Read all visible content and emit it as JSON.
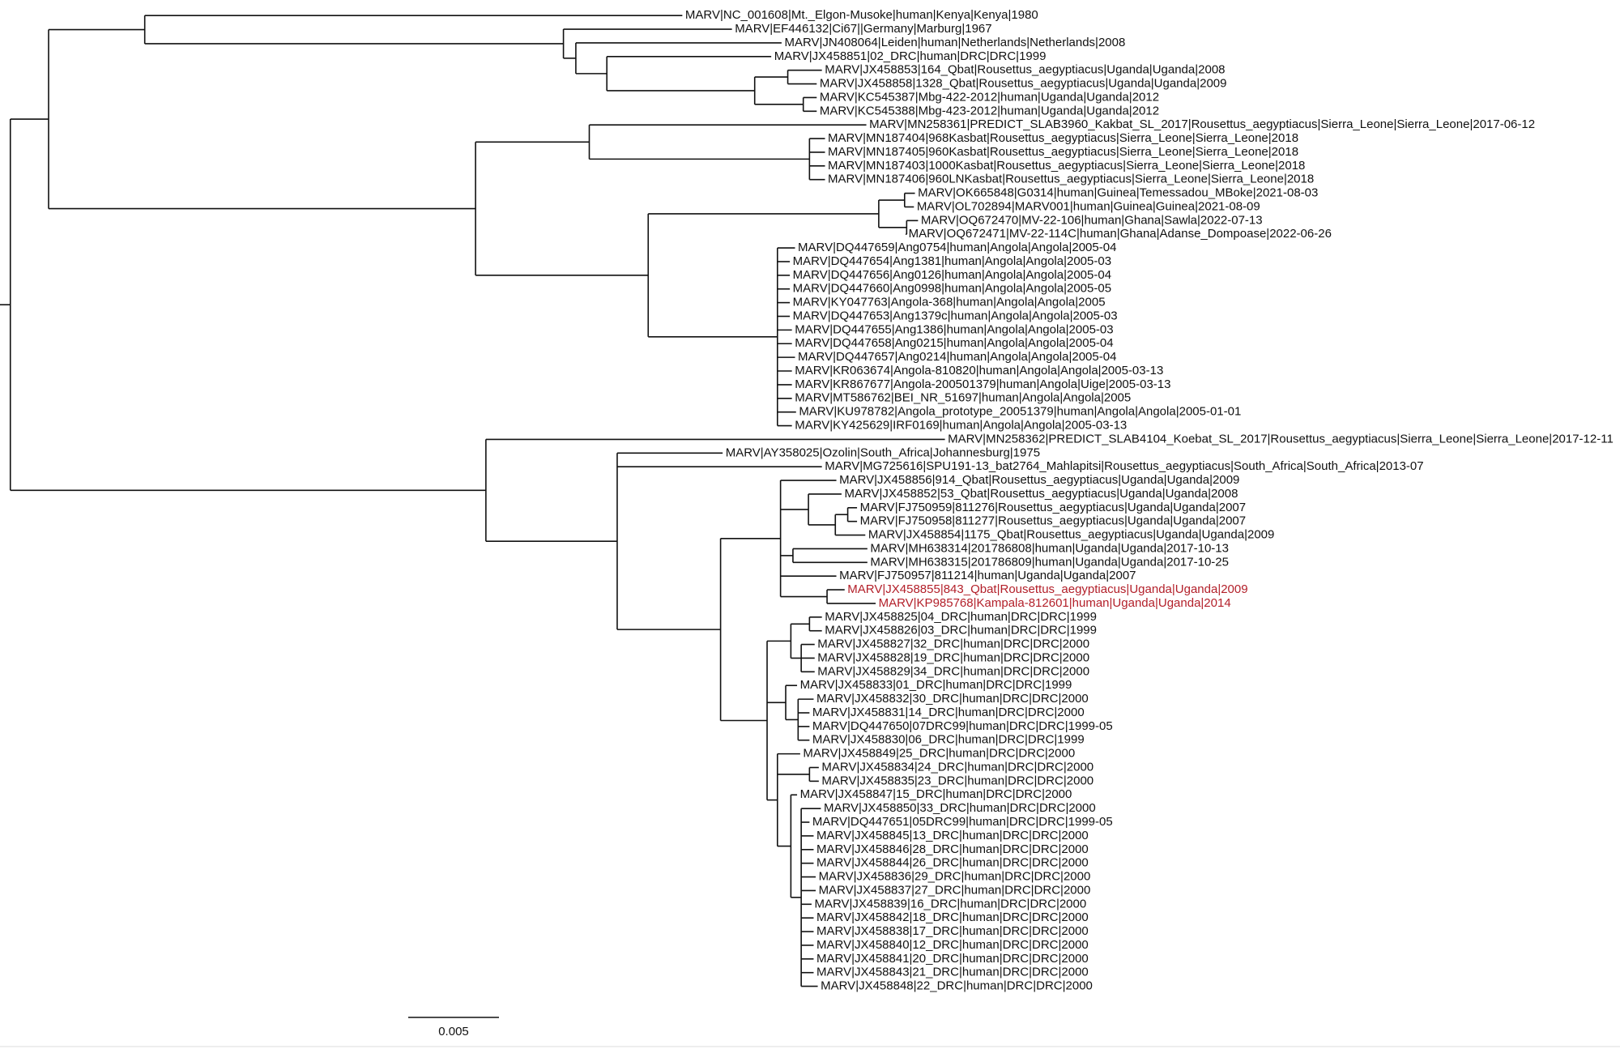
{
  "leaves": [
    "MARV|NC_001608|Mt._Elgon-Musoke|human|Kenya|Kenya|1980",
    "MARV|EF446132|Ci67||Germany|Marburg|1967",
    "MARV|JN408064|Leiden|human|Netherlands|Netherlands|2008",
    "MARV|JX458851|02_DRC|human|DRC|DRC|1999",
    "MARV|JX458853|164_Qbat|Rousettus_aegyptiacus|Uganda|Uganda|2008",
    "MARV|JX458858|1328_Qbat|Rousettus_aegyptiacus|Uganda|Uganda|2009",
    "MARV|KC545387|Mbg-422-2012|human|Uganda|Uganda|2012",
    "MARV|KC545388|Mbg-423-2012|human|Uganda|Uganda|2012",
    "MARV|MN258361|PREDICT_SLAB3960_Kakbat_SL_2017|Rousettus_aegyptiacus|Sierra_Leone|Sierra_Leone|2017-06-12",
    "MARV|MN187404|968Kasbat|Rousettus_aegyptiacus|Sierra_Leone|Sierra_Leone|2018",
    "MARV|MN187405|960Kasbat|Rousettus_aegyptiacus|Sierra_Leone|Sierra_Leone|2018",
    "MARV|MN187403|1000Kasbat|Rousettus_aegyptiacus|Sierra_Leone|Sierra_Leone|2018",
    "MARV|MN187406|960LNKasbat|Rousettus_aegyptiacus|Sierra_Leone|Sierra_Leone|2018",
    "MARV|OK665848|G0314|human|Guinea|Temessadou_MBoke|2021-08-03",
    "MARV|OL702894|MARV001|human|Guinea|Guinea|2021-08-09",
    "MARV|OQ672470|MV-22-106|human|Ghana|Sawla|2022-07-13",
    "MARV|OQ672471|MV-22-114C|human|Ghana|Adanse_Dompoase|2022-06-26",
    "MARV|DQ447659|Ang0754|human|Angola|Angola|2005-04",
    "MARV|DQ447654|Ang1381|human|Angola|Angola|2005-03",
    "MARV|DQ447656|Ang0126|human|Angola|Angola|2005-04",
    "MARV|DQ447660|Ang0998|human|Angola|Angola|2005-05",
    "MARV|KY047763|Angola-368|human|Angola|Angola|2005",
    "MARV|DQ447653|Ang1379c|human|Angola|Angola|2005-03",
    "MARV|DQ447655|Ang1386|human|Angola|Angola|2005-03",
    "MARV|DQ447658|Ang0215|human|Angola|Angola|2005-04",
    "MARV|DQ447657|Ang0214|human|Angola|Angola|2005-04",
    "MARV|KR063674|Angola-810820|human|Angola|Angola|2005-03-13",
    "MARV|KR867677|Angola-200501379|human|Angola|Uige|2005-03-13",
    "MARV|MT586762|BEI_NR_51697|human|Angola|Angola|2005",
    "MARV|KU978782|Angola_prototype_20051379|human|Angola|Angola|2005-01-01",
    "MARV|KY425629|IRF0169|human|Angola|Angola|2005-03-13",
    "MARV|MN258362|PREDICT_SLAB4104_Koebat_SL_2017|Rousettus_aegyptiacus|Sierra_Leone|Sierra_Leone|2017-12-11",
    "MARV|AY358025|Ozolin|South_Africa|Johannesburg|1975",
    "MARV|MG725616|SPU191-13_bat2764_Mahlapitsi|Rousettus_aegyptiacus|South_Africa|South_Africa|2013-07",
    "MARV|JX458856|914_Qbat|Rousettus_aegyptiacus|Uganda|Uganda|2009",
    "MARV|JX458852|53_Qbat|Rousettus_aegyptiacus|Uganda|Uganda|2008",
    "MARV|FJ750959|811276|Rousettus_aegyptiacus|Uganda|Uganda|2007",
    "MARV|FJ750958|811277|Rousettus_aegyptiacus|Uganda|Uganda|2007",
    "MARV|JX458854|1175_Qbat|Rousettus_aegyptiacus|Uganda|Uganda|2009",
    "MARV|MH638314|201786808|human|Uganda|Uganda|2017-10-13",
    "MARV|MH638315|201786809|human|Uganda|Uganda|2017-10-25",
    "MARV|FJ750957|811214|human|Uganda|Uganda|2007",
    "MARV|JX458855|843_Qbat|Rousettus_aegyptiacus|Uganda|Uganda|2009",
    "MARV|KP985768|Kampala-812601|human|Uganda|Uganda|2014",
    "MARV|JX458825|04_DRC|human|DRC|DRC|1999",
    "MARV|JX458826|03_DRC|human|DRC|DRC|1999",
    "MARV|JX458827|32_DRC|human|DRC|DRC|2000",
    "MARV|JX458828|19_DRC|human|DRC|DRC|2000",
    "MARV|JX458829|34_DRC|human|DRC|DRC|2000",
    "MARV|JX458833|01_DRC|human|DRC|DRC|1999",
    "MARV|JX458832|30_DRC|human|DRC|DRC|2000",
    "MARV|JX458831|14_DRC|human|DRC|DRC|2000",
    "MARV|DQ447650|07DRC99|human|DRC|DRC|1999-05",
    "MARV|JX458830|06_DRC|human|DRC|DRC|1999",
    "MARV|JX458849|25_DRC|human|DRC|DRC|2000",
    "MARV|JX458834|24_DRC|human|DRC|DRC|2000",
    "MARV|JX458835|23_DRC|human|DRC|DRC|2000",
    "MARV|JX458847|15_DRC|human|DRC|DRC|2000",
    "MARV|JX458850|33_DRC|human|DRC|DRC|2000",
    "MARV|DQ447651|05DRC99|human|DRC|DRC|1999-05",
    "MARV|JX458845|13_DRC|human|DRC|DRC|2000",
    "MARV|JX458846|28_DRC|human|DRC|DRC|2000",
    "MARV|JX458844|26_DRC|human|DRC|DRC|2000",
    "MARV|JX458836|29_DRC|human|DRC|DRC|2000",
    "MARV|JX458837|27_DRC|human|DRC|DRC|2000",
    "MARV|JX458839|16_DRC|human|DRC|DRC|2000",
    "MARV|JX458842|18_DRC|human|DRC|DRC|2000",
    "MARV|JX458838|17_DRC|human|DRC|DRC|2000",
    "MARV|JX458840|12_DRC|human|DRC|DRC|2000",
    "MARV|JX458841|20_DRC|human|DRC|DRC|2000",
    "MARV|JX458843|21_DRC|human|DRC|DRC|2000",
    "MARV|JX458848|22_DRC|human|DRC|DRC|2000"
  ],
  "scale_bar": {
    "label": "0.005"
  }
}
